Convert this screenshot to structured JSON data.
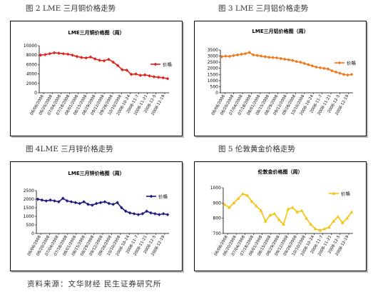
{
  "captions": {
    "fig2": "图 2   LME 三月铜价格走势",
    "fig3": "图 3   LME 三月铝价格走势",
    "fig4": "图 4LME 三月锌价格走势",
    "fig5": "图 5   伦敦黄金价格走势"
  },
  "footer": "资料来源：文华财经 民生证券研究所",
  "chart_data": [
    {
      "type": "line",
      "title": "LME三月铜价格图（周）",
      "legend": "价格",
      "color": "#e0211b",
      "marker": "diamond",
      "ylim": [
        0,
        10000
      ],
      "yticks": [
        0,
        2000,
        4000,
        6000,
        8000,
        10000
      ],
      "xticks": [
        "06/06/2008",
        "06/20/2008",
        "07/04/2008",
        "07/18/2008",
        "08/01/2008",
        "08/15/2008",
        "08/29/2008",
        "09/12/2008",
        "09/26/2008",
        "10/10/2008",
        "2008-10-24",
        "2008-11-7",
        "2008-11-21",
        "2008-12-5",
        "2008-12-19"
      ],
      "values": [
        8000,
        8100,
        8300,
        8500,
        8400,
        8300,
        8200,
        8000,
        7700,
        7500,
        7400,
        7600,
        7200,
        6900,
        6800,
        7100,
        6500,
        5800,
        4900,
        4800,
        3900,
        4000,
        3700,
        3800,
        3600,
        3400,
        3300,
        3200,
        3000
      ]
    },
    {
      "type": "line",
      "title": "LME三月铝价格图（周）",
      "legend": "价格",
      "color": "#f07818",
      "marker": "diamond",
      "ylim": [
        0,
        3500
      ],
      "yticks": [
        0,
        500,
        1000,
        1500,
        2000,
        2500,
        3000,
        3500
      ],
      "xticks": [
        "06/06/2008",
        "06/20/2008",
        "07/04/2008",
        "07/18/2008",
        "08/01/2008",
        "08/15/2008",
        "08/29/2008",
        "09/12/2008",
        "09/26/2008",
        "10/10/2008",
        "2008-10-24",
        "2008-11-7",
        "2008-11-21",
        "2008-12-5",
        "2008-12-19"
      ],
      "values": [
        2950,
        3000,
        2980,
        3050,
        3100,
        3150,
        3200,
        3300,
        3100,
        3050,
        3000,
        2950,
        2900,
        2880,
        2850,
        2800,
        2750,
        2700,
        2650,
        2550,
        2500,
        2400,
        2300,
        2200,
        2100,
        2050,
        2000,
        1950,
        1800,
        1700,
        1600,
        1500,
        1450,
        1500
      ]
    },
    {
      "type": "line",
      "title": "LME三月锌价格图（周）",
      "legend": "价格",
      "color": "#1a1a80",
      "marker": "diamond",
      "ylim": [
        0,
        2500
      ],
      "yticks": [
        0,
        500,
        1000,
        1500,
        2000,
        2500
      ],
      "xticks": [
        "06/06/2008",
        "06/20/2008",
        "07/04/2008",
        "07/18/2008",
        "08/01/2008",
        "08/15/2008",
        "08/29/2008",
        "09/12/2008",
        "09/26/2008",
        "10/10/2008",
        "2008-10-24",
        "2008-11-7",
        "2008-11-21",
        "2008-12-5",
        "2008-12-19"
      ],
      "values": [
        2000,
        1950,
        1900,
        1950,
        1900,
        1850,
        2050,
        1900,
        1850,
        1800,
        1750,
        1850,
        1700,
        1650,
        1750,
        1800,
        1850,
        1750,
        1700,
        1800,
        1500,
        1300,
        1200,
        1150,
        1100,
        1150,
        1300,
        1200,
        1150,
        1100,
        1150,
        1100
      ]
    },
    {
      "type": "line",
      "title": "伦敦金价格图（周）",
      "legend": "价格",
      "color": "#f4c20f",
      "marker": "triangle",
      "ylim": [
        700,
        1000
      ],
      "yticks": [
        700,
        800,
        900,
        1000
      ],
      "xticks": [
        "06/06/2008",
        "06/20/2008",
        "07/04/2008",
        "07/18/2008",
        "08/01/2008",
        "08/15/2008",
        "08/29/2008",
        "09/12/2008",
        "09/26/2008",
        "10/10/2008",
        "2008-10-24",
        "2008-11-7",
        "2008-11-21",
        "2008-12-5",
        "2008-12-19"
      ],
      "values": [
        890,
        870,
        900,
        930,
        960,
        950,
        910,
        880,
        850,
        780,
        820,
        830,
        790,
        760,
        860,
        870,
        840,
        850,
        800,
        760,
        730,
        720,
        730,
        740,
        780,
        810,
        770,
        800,
        840
      ]
    }
  ]
}
